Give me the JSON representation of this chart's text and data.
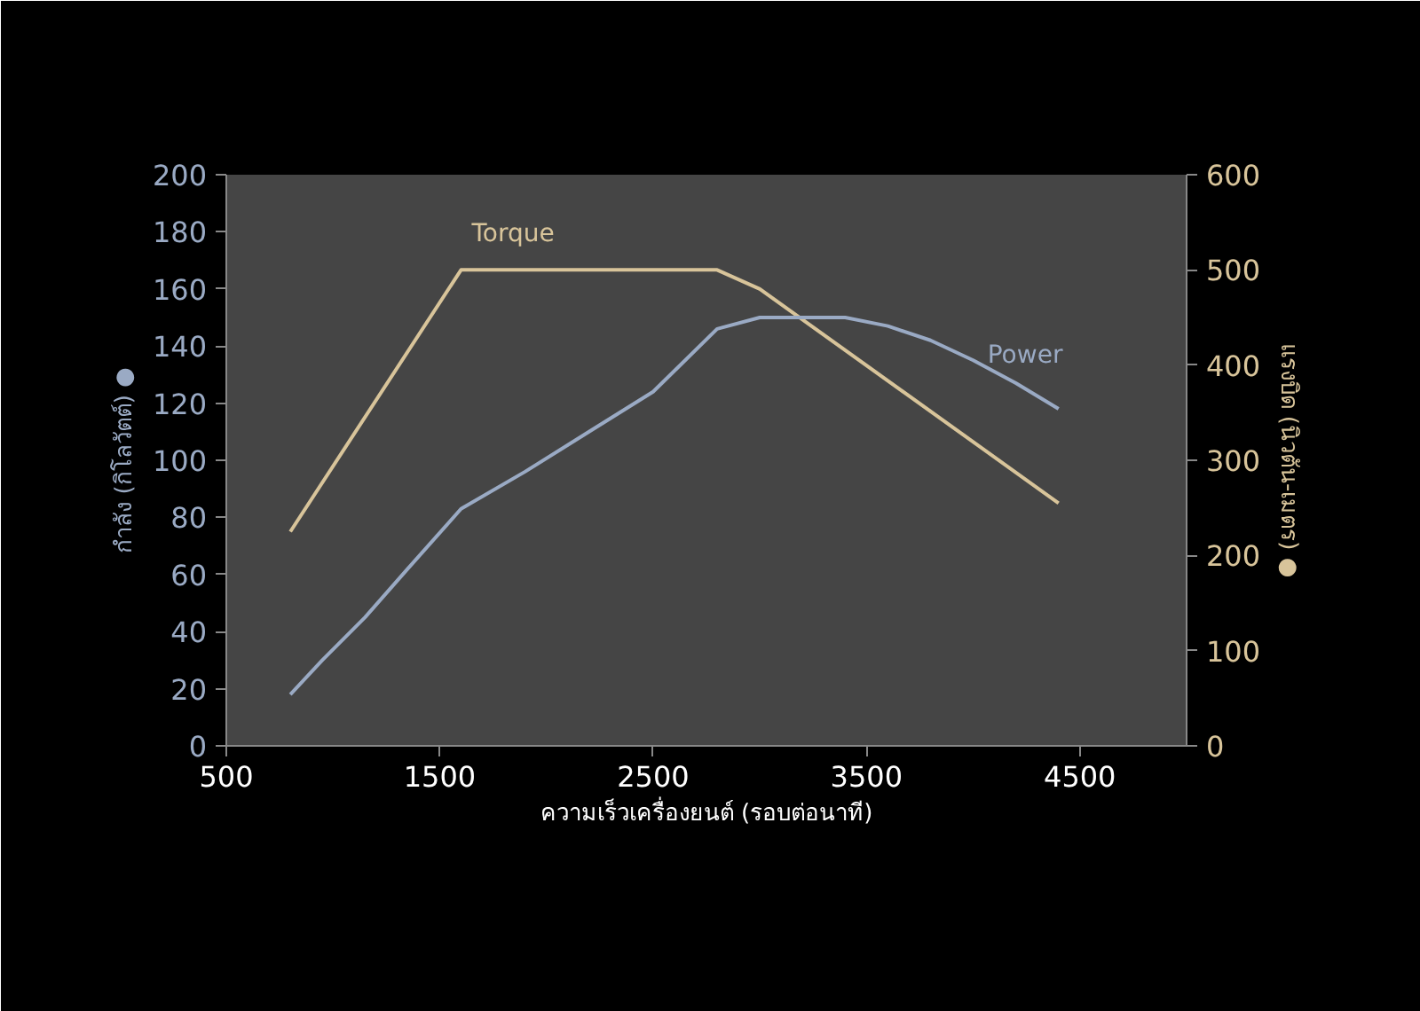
{
  "chart_data": {
    "type": "line",
    "xlabel": "ความเร็วเครื่องยนต์ (รอบต่อนาที)",
    "ylabel": "กำลัง (กิโลวัตต์) ●",
    "y2label": "แรงบิด (นิวตัน-เมตร) ●",
    "xlim": [
      500,
      5000
    ],
    "xticks": [
      500,
      1500,
      2500,
      3500,
      4500
    ],
    "ylim": [
      0,
      200
    ],
    "yticks": [
      0,
      20,
      40,
      60,
      80,
      100,
      120,
      140,
      160,
      180,
      200
    ],
    "y2lim": [
      0,
      600
    ],
    "y2ticks": [
      0,
      100,
      200,
      300,
      400,
      500,
      600
    ],
    "grid": false,
    "series": [
      {
        "name": "Torque",
        "color": "#d8c49a",
        "axis": "y2",
        "x": [
          800,
          1600,
          2800,
          3000,
          4400
        ],
        "values": [
          225,
          500,
          500,
          480,
          255
        ]
      },
      {
        "name": "Power",
        "color": "#9aaac4",
        "x": [
          800,
          950,
          1150,
          1350,
          1600,
          1900,
          2200,
          2500,
          2800,
          3000,
          3400,
          3600,
          3800,
          4000,
          4200,
          4400
        ],
        "values": [
          18,
          30,
          45,
          62,
          83,
          96,
          110,
          124,
          146,
          150,
          150,
          147,
          142,
          135,
          127,
          118
        ]
      }
    ]
  }
}
